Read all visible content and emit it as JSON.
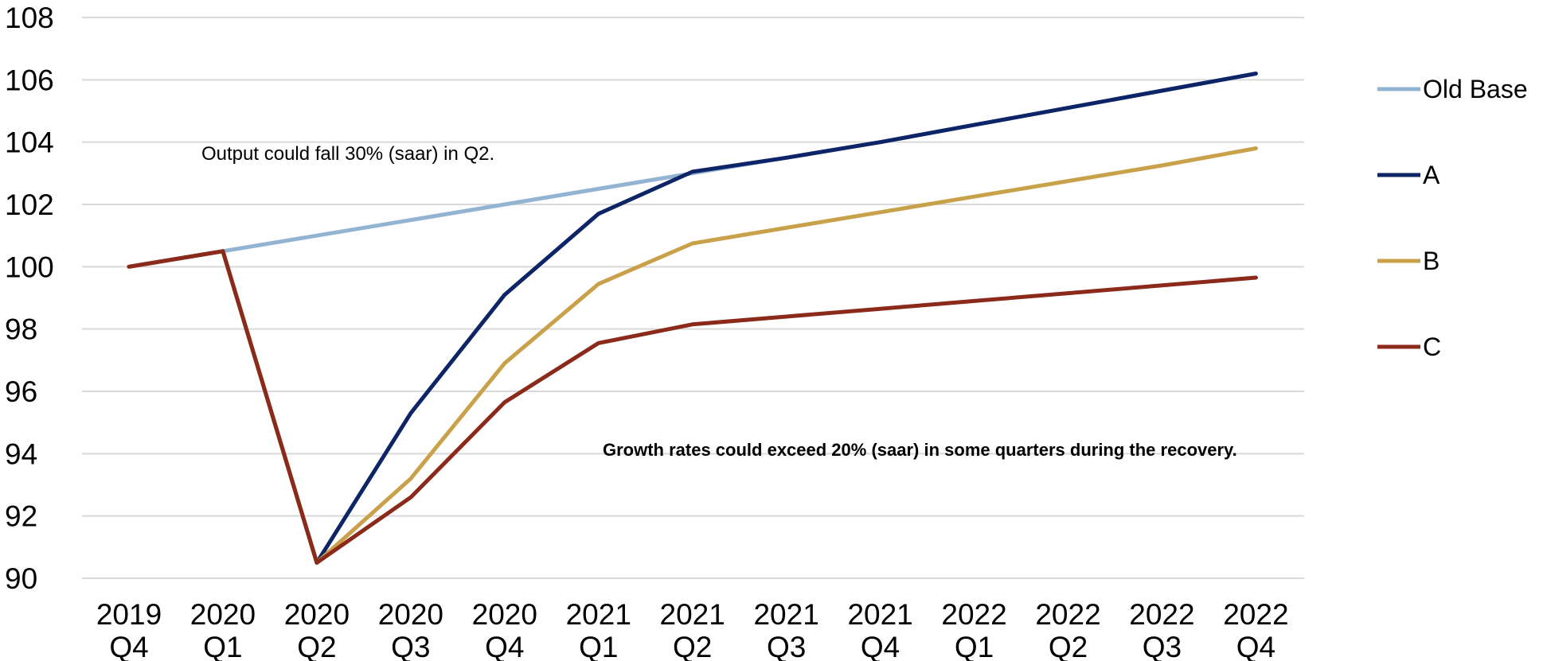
{
  "chart_data": {
    "type": "line",
    "categories": [
      [
        "2019",
        "Q4"
      ],
      [
        "2020",
        "Q1"
      ],
      [
        "2020",
        "Q2"
      ],
      [
        "2020",
        "Q3"
      ],
      [
        "2020",
        "Q4"
      ],
      [
        "2021",
        "Q1"
      ],
      [
        "2021",
        "Q2"
      ],
      [
        "2021",
        "Q3"
      ],
      [
        "2021",
        "Q4"
      ],
      [
        "2022",
        "Q1"
      ],
      [
        "2022",
        "Q2"
      ],
      [
        "2022",
        "Q3"
      ],
      [
        "2022",
        "Q4"
      ]
    ],
    "ylim": [
      90,
      108
    ],
    "yticks": [
      "90",
      "92",
      "94",
      "96",
      "98",
      "100",
      "102",
      "104",
      "106",
      "108"
    ],
    "grid": true,
    "legend_position": "right",
    "series": [
      {
        "name": "Old Base",
        "color": "#92b4d2",
        "values": [
          100,
          100.5,
          101.0,
          101.5,
          102.0,
          102.5,
          103.0,
          103.5,
          104.0,
          104.55,
          105.1,
          105.65,
          106.2
        ]
      },
      {
        "name": "A",
        "color": "#0d2566",
        "values": [
          100,
          100.5,
          90.5,
          95.3,
          99.1,
          101.7,
          103.05,
          103.5,
          104.0,
          104.55,
          105.1,
          105.65,
          106.2
        ]
      },
      {
        "name": "B",
        "color": "#c9a14a",
        "values": [
          100,
          100.5,
          90.5,
          93.2,
          96.9,
          99.45,
          100.75,
          101.25,
          101.75,
          102.25,
          102.75,
          103.25,
          103.8
        ]
      },
      {
        "name": "C",
        "color": "#8b2a1a",
        "values": [
          100,
          100.5,
          90.5,
          92.6,
          95.65,
          97.55,
          98.15,
          98.4,
          98.65,
          98.9,
          99.15,
          99.4,
          99.65
        ]
      }
    ],
    "annotations": [
      "Output could fall 30% (saar) in Q2.",
      "Growth rates could exceed 20% (saar) in some quarters during the recovery."
    ]
  }
}
